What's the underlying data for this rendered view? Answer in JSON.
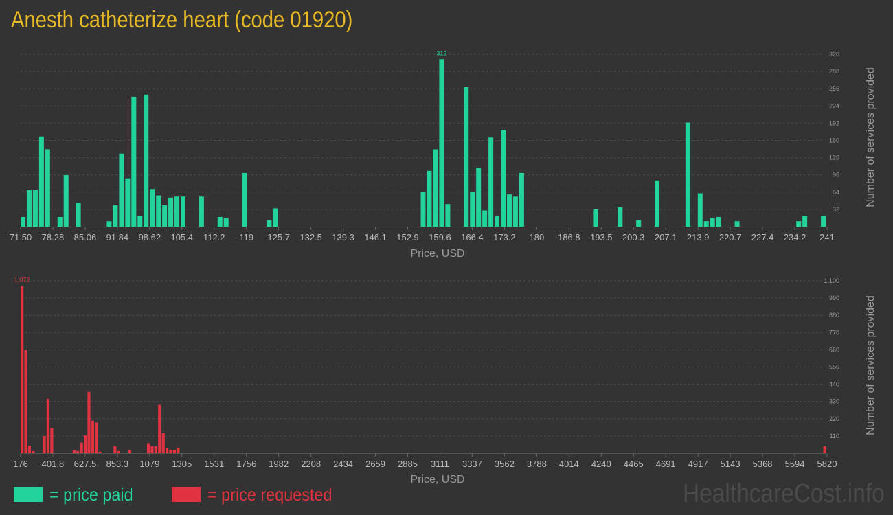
{
  "title": "Anesth catheterize heart (code 01920)",
  "legend": {
    "paid_label": "= price paid",
    "requested_label": "= price requested"
  },
  "watermark": "HealthcareCost.info",
  "colors": {
    "paid": "#22d49b",
    "requested": "#e03240",
    "title": "#e8b923",
    "background": "#333333"
  },
  "chart_data": [
    {
      "type": "bar",
      "name": "price paid",
      "xlabel": "Price, USD",
      "ylabel": "Number of services provided",
      "x_tick_labels": [
        "71.50",
        "78.28",
        "85.06",
        "91.84",
        "98.62",
        "105.4",
        "112.2",
        "119",
        "125.7",
        "132.5",
        "139.3",
        "146.1",
        "152.9",
        "159.6",
        "166.4",
        "173.2",
        "180",
        "186.8",
        "193.5",
        "200.3",
        "207.1",
        "213.9",
        "220.7",
        "227.4",
        "234.2",
        "241"
      ],
      "y_ticks": [
        "32",
        "64",
        "96",
        "128",
        "160",
        "192",
        "224",
        "256",
        "288",
        "320"
      ],
      "ylim": [
        0,
        320
      ],
      "max_label": "312",
      "values": [
        18,
        68,
        68,
        168,
        144,
        0,
        18,
        96,
        0,
        44,
        0,
        0,
        0,
        0,
        10,
        40,
        136,
        90,
        242,
        20,
        246,
        70,
        58,
        40,
        54,
        56,
        56,
        0,
        0,
        56,
        0,
        0,
        18,
        16,
        0,
        0,
        100,
        0,
        0,
        0,
        12,
        34,
        0,
        0,
        0,
        0,
        0,
        0,
        0,
        0,
        0,
        0,
        0,
        0,
        0,
        0,
        0,
        0,
        0,
        0,
        0,
        0,
        0,
        0,
        0,
        64,
        104,
        144,
        312,
        42,
        0,
        0,
        260,
        64,
        110,
        30,
        166,
        20,
        180,
        60,
        56,
        100,
        0,
        0,
        0,
        0,
        0,
        0,
        0,
        0,
        0,
        0,
        0,
        32,
        0,
        0,
        0,
        36,
        0,
        0,
        12,
        0,
        0,
        86,
        0,
        0,
        0,
        0,
        194,
        0,
        62,
        10,
        16,
        18,
        0,
        0,
        10,
        0,
        0,
        0,
        0,
        0,
        0,
        0,
        0,
        0,
        10,
        20,
        0,
        0,
        20
      ]
    },
    {
      "type": "bar",
      "name": "price requested",
      "xlabel": "Price, USD",
      "ylabel": "Number of services provided",
      "x_tick_labels": [
        "176",
        "401.8",
        "627.5",
        "853.3",
        "1079",
        "1305",
        "1531",
        "1756",
        "1982",
        "2208",
        "2434",
        "2659",
        "2885",
        "3111",
        "3337",
        "3562",
        "3788",
        "4014",
        "4240",
        "4465",
        "4691",
        "4917",
        "5143",
        "5368",
        "5594",
        "5820"
      ],
      "y_ticks": [
        "110",
        "220",
        "330",
        "440",
        "550",
        "660",
        "770",
        "880",
        "990",
        "1,100"
      ],
      "ylim": [
        0,
        1100
      ],
      "max_label": "1,072",
      "values": [
        1072,
        660,
        48,
        14,
        0,
        0,
        110,
        348,
        162,
        0,
        0,
        0,
        0,
        0,
        18,
        14,
        68,
        114,
        392,
        208,
        196,
        10,
        0,
        0,
        0,
        44,
        14,
        0,
        0,
        18,
        0,
        0,
        0,
        0,
        64,
        44,
        44,
        310,
        128,
        34,
        22,
        20,
        34,
        0,
        0,
        0,
        0,
        0,
        0,
        0,
        0,
        0,
        0,
        0,
        0,
        0,
        0,
        0,
        0,
        0,
        0,
        0,
        0,
        0,
        0,
        0,
        0,
        0,
        0,
        0,
        0,
        0,
        0,
        0,
        0,
        0,
        0,
        0,
        0,
        0,
        0,
        0,
        0,
        0,
        0,
        0,
        0,
        0,
        0,
        0,
        0,
        0,
        0,
        0,
        0,
        0,
        0,
        0,
        0,
        0,
        0,
        0,
        0,
        0,
        0,
        0,
        0,
        0,
        0,
        0,
        0,
        0,
        0,
        0,
        0,
        0,
        0,
        0,
        0,
        0,
        0,
        0,
        0,
        0,
        0,
        0,
        0,
        0,
        0,
        0,
        0,
        0,
        0,
        0,
        0,
        0,
        0,
        0,
        0,
        0,
        0,
        0,
        0,
        0,
        0,
        0,
        0,
        0,
        0,
        0,
        0,
        0,
        0,
        0,
        0,
        0,
        0,
        0,
        0,
        0,
        0,
        0,
        0,
        0,
        0,
        0,
        0,
        0,
        0,
        0,
        0,
        0,
        0,
        0,
        0,
        0,
        0,
        0,
        0,
        0,
        0,
        0,
        0,
        0,
        0,
        0,
        0,
        0,
        0,
        0,
        0,
        0,
        0,
        0,
        0,
        0,
        0,
        0,
        0,
        0,
        0,
        0,
        0,
        0,
        0,
        0,
        0,
        0,
        0,
        0,
        0,
        0,
        0,
        0,
        0,
        0,
        44
      ]
    }
  ]
}
